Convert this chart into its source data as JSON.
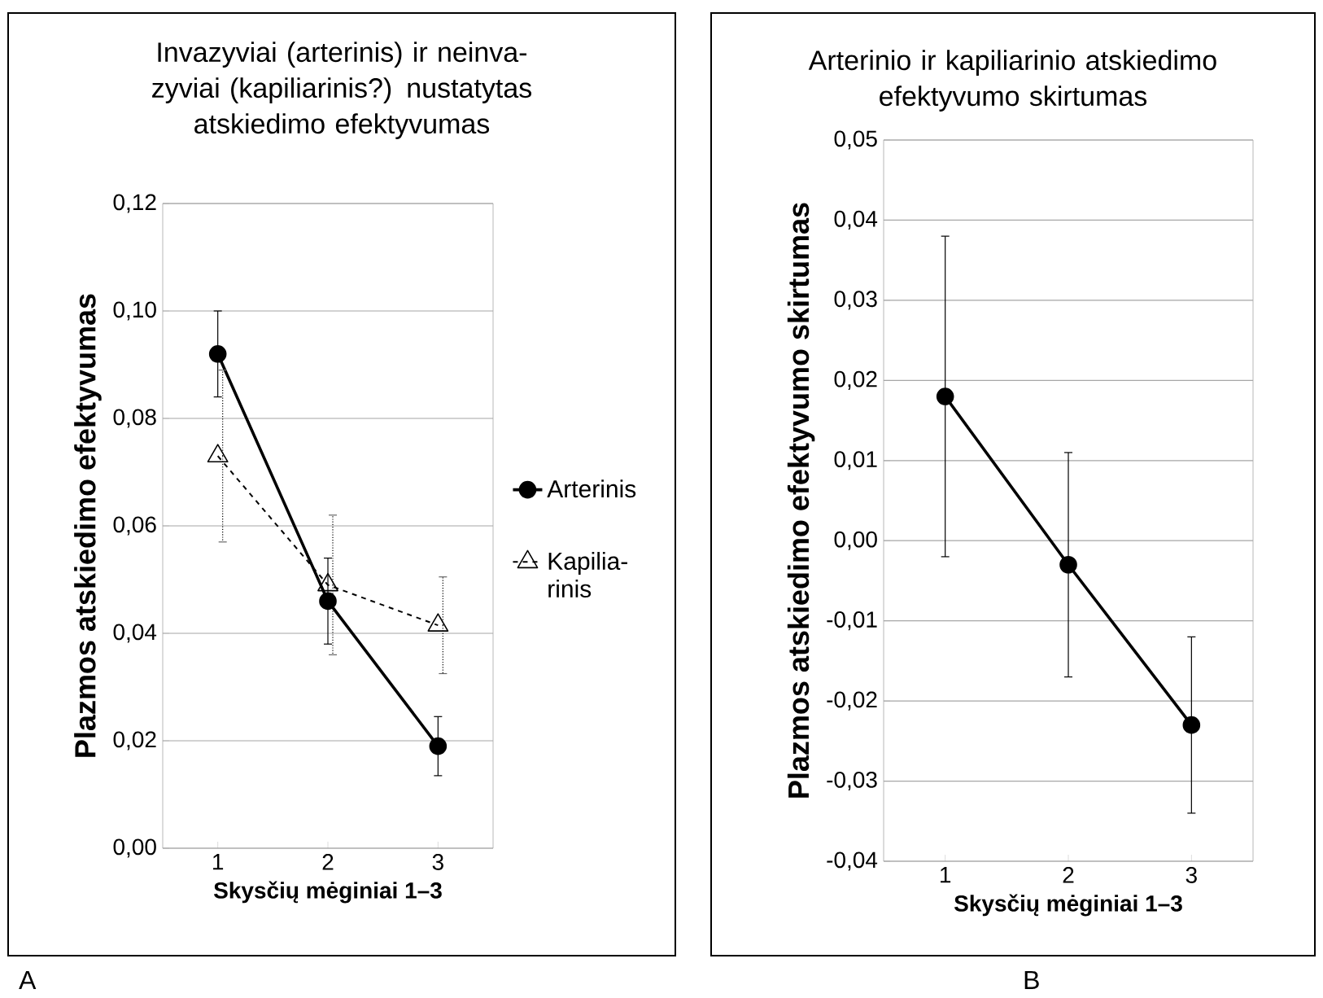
{
  "chart_data": [
    {
      "type": "line",
      "title": "Invazyviai (arterinis) ir neinva-zyviai (kapiliarinis?) nustatytas atskiedimo efektyvumas",
      "xlabel": "Skysčių mėginiai  **1–3**",
      "ylabel": "Plazmos atskiedimo efektyvumas",
      "categories": [
        "1",
        "2",
        "3"
      ],
      "series": [
        {
          "name": "Arterinis",
          "color": "#000000",
          "marker": "circle",
          "line_style": "solid",
          "values": [
            0.092,
            0.046,
            0.019
          ],
          "errors": [
            0.008,
            0.008,
            0.0055
          ]
        },
        {
          "name": "Kapilia-rinis",
          "color": "#000000",
          "marker": "triangle",
          "line_style": "dashed",
          "values": [
            0.073,
            0.049,
            0.0415
          ],
          "errors": [
            0.016,
            0.013,
            0.009
          ]
        }
      ],
      "ylim": [
        0,
        0.12
      ],
      "yticks": [
        {
          "value": 0,
          "label": "0,00"
        },
        {
          "value": 0.02,
          "label": "0,02"
        },
        {
          "value": 0.04,
          "label": "0,04"
        },
        {
          "value": 0.06,
          "label": "0,06"
        },
        {
          "value": 0.08,
          "label": "0,08"
        },
        {
          "value": 0.1,
          "label": "0,10"
        },
        {
          "value": 0.12,
          "label": "0,12"
        }
      ],
      "grid": "y",
      "legend": "right",
      "annotations": [
        "A"
      ]
    },
    {
      "type": "line",
      "title": "Arterinio ir kapiliarinio atskiedimo efektyvumo skirtumas",
      "xlabel": "Skysčių mėginiai  **1–3**",
      "ylabel": "Plazmos atskiedimo efektyvumo skirtumas",
      "categories": [
        "1",
        "2",
        "3"
      ],
      "series": [
        {
          "color": "#000000",
          "marker": "circle",
          "line_style": "solid",
          "values": [
            0.018,
            -0.003,
            -0.023
          ],
          "errors": [
            0.02,
            0.014,
            0.011
          ]
        }
      ],
      "ylim": [
        -0.04,
        0.05
      ],
      "yticks": [
        {
          "value": -0.04,
          "label": "-0,04"
        },
        {
          "value": -0.03,
          "label": "-0,03"
        },
        {
          "value": -0.02,
          "label": "-0,02"
        },
        {
          "value": -0.01,
          "label": "-0,01"
        },
        {
          "value": 0,
          "label": "0,00"
        },
        {
          "value": 0.01,
          "label": "0,01"
        },
        {
          "value": 0.02,
          "label": "0,02"
        },
        {
          "value": 0.03,
          "label": "0,03"
        },
        {
          "value": 0.04,
          "label": "0,04"
        },
        {
          "value": 0.05,
          "label": "0,05"
        }
      ],
      "grid": "y",
      "legend": false,
      "annotations": [
        "B"
      ]
    }
  ]
}
